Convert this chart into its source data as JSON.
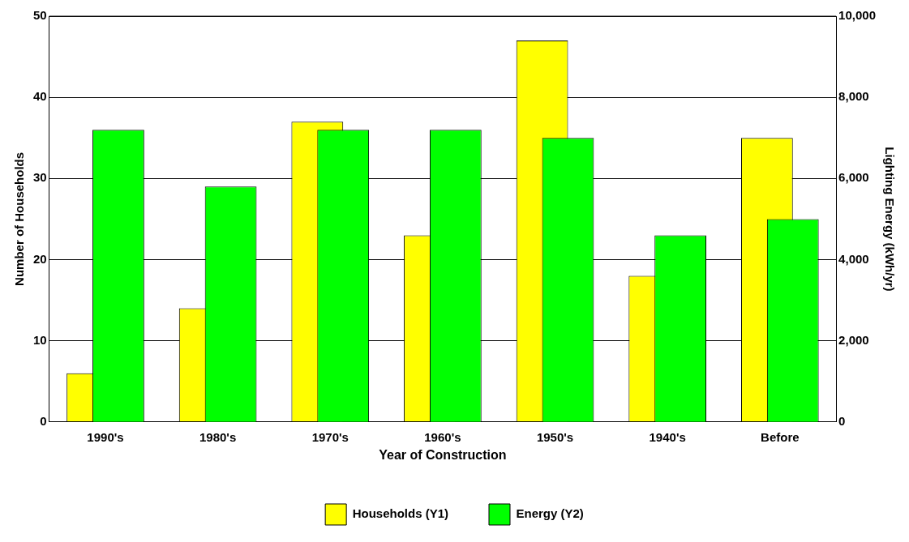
{
  "chart_data": {
    "type": "bar",
    "xlabel": "Year of Construction",
    "ylabel": "Number of Households",
    "y2label": "Lighting Energy (kWh/yr)",
    "categories": [
      "1990's",
      "1980's",
      "1970's",
      "1960's",
      "1950's",
      "1940's",
      "Before"
    ],
    "series": [
      {
        "name": "Households (Y1)",
        "color": "#ffff00",
        "values": [
          6,
          14,
          37,
          23,
          47,
          18,
          35
        ]
      },
      {
        "name": "Energy (Y2)",
        "color": "#00ff00",
        "axis": "y2",
        "values": [
          7200,
          5800,
          7200,
          7200,
          7000,
          4600,
          5000
        ]
      }
    ],
    "ylim": [
      0,
      50
    ],
    "yticks": [
      0,
      10,
      20,
      30,
      40,
      50
    ],
    "y2lim": [
      0,
      10000
    ],
    "y2ticks": [
      0,
      {
        "value": 2000,
        "label": "2,000"
      },
      {
        "value": 4000,
        "label": "4,000"
      },
      {
        "value": 6000,
        "label": "6,000"
      },
      {
        "value": 8000,
        "label": "8,000"
      },
      {
        "value": 10000,
        "label": "10,000"
      }
    ],
    "grid": "y",
    "legend": "bottom"
  }
}
